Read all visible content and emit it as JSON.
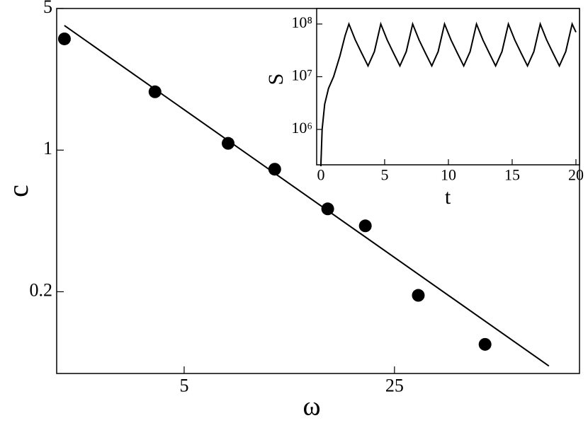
{
  "chart_data": [
    {
      "type": "scatter",
      "x_label": "ω",
      "y_label": "c",
      "xlog": true,
      "ylog": true,
      "xlim": [
        1.885,
        103
      ],
      "ylim": [
        0.079,
        5
      ],
      "xticks": [
        5,
        25
      ],
      "yticks": [
        0.2,
        1,
        5
      ],
      "series": [
        {
          "mode": "markers",
          "color": "#000000",
          "x": [
            2,
            4,
            7,
            10,
            15,
            20,
            30,
            50
          ],
          "values": [
            3.54,
            1.94,
            1.08,
            0.805,
            0.513,
            0.423,
            0.192,
            0.11
          ]
        },
        {
          "mode": "line",
          "color": "#000000",
          "x": [
            2,
            81.5
          ],
          "values": [
            4.12,
            0.086
          ]
        }
      ]
    },
    {
      "type": "line",
      "x_label": "t",
      "y_label": "S",
      "xlog": false,
      "ylog": true,
      "xlim": [
        -0.33,
        20.28
      ],
      "ylim": [
        213000,
        197000000
      ],
      "xticks": [
        0,
        5,
        10,
        15,
        20
      ],
      "yticks": [
        {
          "value": 1000000,
          "label": "10⁶"
        },
        {
          "value": 10000000,
          "label": "10⁷"
        },
        {
          "value": 100000000,
          "label": "10⁸"
        }
      ],
      "series": [
        {
          "mode": "line",
          "color": "#000000",
          "x": [
            0,
            0.1,
            0.3,
            0.6,
            1.0,
            1.5,
            1.9,
            2.2,
            2.7,
            3.2,
            3.7,
            4.2,
            4.7,
            5.2,
            5.7,
            6.2,
            6.7,
            7.2,
            7.7,
            8.2,
            8.7,
            9.2,
            9.7,
            10.2,
            10.7,
            11.2,
            11.7,
            12.2,
            12.7,
            13.2,
            13.7,
            14.2,
            14.7,
            15.2,
            15.7,
            16.2,
            16.7,
            17.2,
            17.7,
            18.2,
            18.7,
            19.2,
            19.7,
            20.0
          ],
          "values": [
            200000,
            1000000,
            3000000,
            6000000,
            10000000,
            25000000,
            60000000,
            100000000,
            50000000,
            28000000,
            16000000,
            30000000,
            100000000,
            50000000,
            28000000,
            16000000,
            30000000,
            100000000,
            50000000,
            28000000,
            16000000,
            30000000,
            100000000,
            50000000,
            28000000,
            16000000,
            30000000,
            100000000,
            50000000,
            28000000,
            16000000,
            30000000,
            100000000,
            50000000,
            28000000,
            16000000,
            30000000,
            100000000,
            50000000,
            28000000,
            16000000,
            30000000,
            100000000,
            70000000
          ]
        }
      ]
    }
  ]
}
